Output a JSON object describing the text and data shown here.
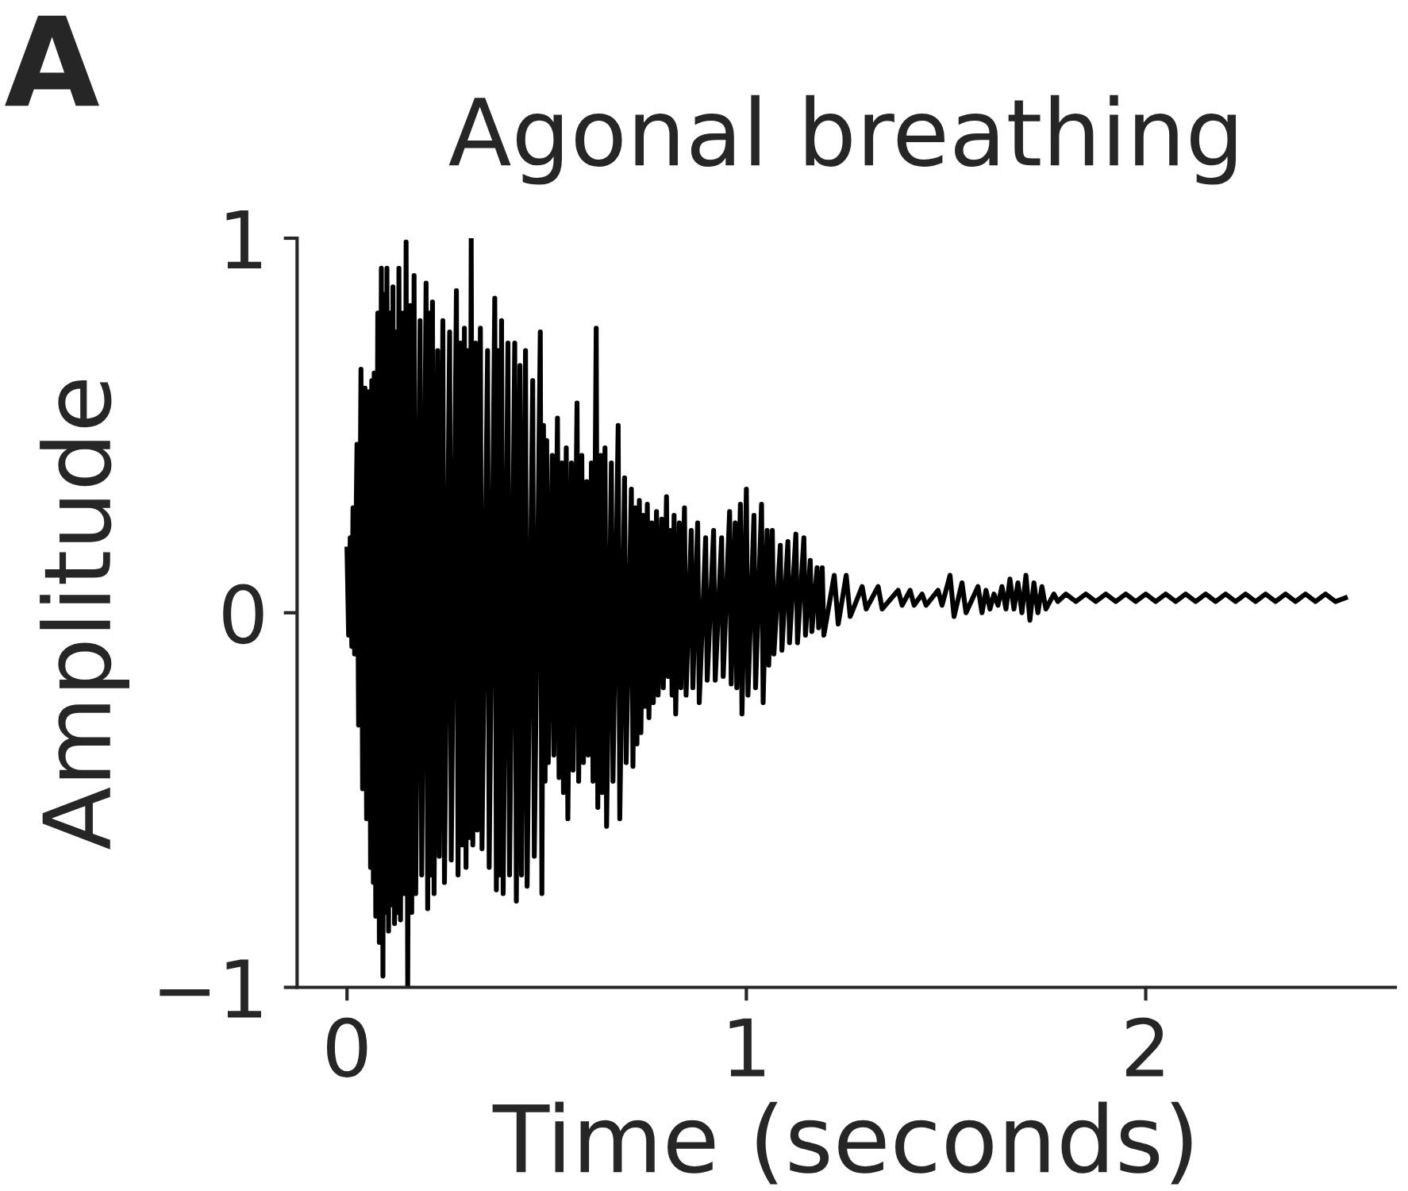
{
  "chart_data": {
    "type": "line",
    "title": "Agonal breathing",
    "xlabel": "Time (seconds)",
    "ylabel": "Amplitude",
    "annotations": [
      "A"
    ],
    "xlim": [
      -0.125,
      2.625
    ],
    "ylim": [
      -1,
      1
    ],
    "xticks": [
      0,
      1,
      2
    ],
    "yticks": [
      {
        "value": -1,
        "label": "−1"
      },
      0,
      1
    ],
    "series": [
      {
        "color": "#000000",
        "x": [
          0,
          0.004,
          0.008,
          0.012,
          0.015,
          0.019,
          0.025,
          0.029,
          0.035,
          0.039,
          0.045,
          0.049,
          0.055,
          0.059,
          0.062,
          0.066,
          0.068,
          0.072,
          0.077,
          0.081,
          0.086,
          0.09,
          0.093,
          0.097,
          0.1,
          0.104,
          0.108,
          0.112,
          0.115,
          0.119,
          0.122,
          0.126,
          0.13,
          0.134,
          0.14,
          0.144,
          0.148,
          0.152,
          0.158,
          0.162,
          0.168,
          0.172,
          0.183,
          0.187,
          0.198,
          0.202,
          0.206,
          0.21,
          0.214,
          0.218,
          0.227,
          0.231,
          0.24,
          0.244,
          0.257,
          0.261,
          0.274,
          0.278,
          0.284,
          0.288,
          0.294,
          0.298,
          0.303,
          0.307,
          0.311,
          0.315,
          0.322,
          0.326,
          0.334,
          0.338,
          0.352,
          0.356,
          0.37,
          0.374,
          0.378,
          0.382,
          0.387,
          0.391,
          0.403,
          0.407,
          0.42,
          0.424,
          0.433,
          0.437,
          0.447,
          0.451,
          0.465,
          0.469,
          0.484,
          0.488,
          0.492,
          0.496,
          0.5,
          0.504,
          0.514,
          0.518,
          0.527,
          0.531,
          0.538,
          0.542,
          0.549,
          0.553,
          0.562,
          0.566,
          0.576,
          0.58,
          0.588,
          0.592,
          0.6,
          0.604,
          0.612,
          0.616,
          0.624,
          0.628,
          0.635,
          0.639,
          0.646,
          0.65,
          0.662,
          0.666,
          0.679,
          0.683,
          0.695,
          0.699,
          0.712,
          0.716,
          0.722,
          0.726,
          0.732,
          0.736,
          0.742,
          0.746,
          0.752,
          0.756,
          0.763,
          0.767,
          0.775,
          0.779,
          0.788,
          0.792,
          0.8,
          0.804,
          0.81,
          0.814,
          0.819,
          0.823,
          0.832,
          0.836,
          0.845,
          0.849,
          0.862,
          0.866,
          0.878,
          0.882,
          0.898,
          0.902,
          0.918,
          0.922,
          0.938,
          0.942,
          0.958,
          0.962,
          0.972,
          0.976,
          0.985,
          0.989,
          1.0,
          1.004,
          1.019,
          1.023,
          1.038,
          1.042,
          1.052,
          1.056,
          1.065,
          1.069,
          1.085,
          1.089,
          1.104,
          1.108,
          1.124,
          1.128,
          1.144,
          1.148,
          1.16,
          1.164,
          1.177,
          1.181,
          1.19,
          1.194,
          1.22,
          1.23,
          1.25,
          1.26,
          1.29,
          1.3,
          1.33,
          1.34,
          1.38,
          1.39,
          1.41,
          1.42,
          1.44,
          1.45,
          1.48,
          1.49,
          1.51,
          1.52,
          1.54,
          1.55,
          1.58,
          1.59,
          1.6,
          1.61,
          1.62,
          1.63,
          1.64,
          1.65,
          1.66,
          1.67,
          1.68,
          1.69,
          1.7,
          1.71,
          1.72,
          1.73,
          1.74,
          1.75,
          1.77,
          1.78,
          1.8,
          1.825,
          1.85,
          1.875,
          1.9,
          1.925,
          1.95,
          1.975,
          2.0,
          2.025,
          2.05,
          2.075,
          2.1,
          2.125,
          2.15,
          2.175,
          2.2,
          2.225,
          2.25,
          2.275,
          2.3,
          2.325,
          2.35,
          2.375,
          2.4,
          2.425,
          2.45,
          2.475,
          2.5
        ],
        "values": [
          0.17,
          -0.06,
          0.2,
          -0.09,
          0.28,
          -0.11,
          0.45,
          -0.3,
          0.65,
          -0.47,
          0.6,
          -0.55,
          0.59,
          -0.68,
          0.62,
          -0.72,
          0.64,
          -0.81,
          0.8,
          -0.88,
          0.92,
          -0.97,
          0.85,
          -0.8,
          0.92,
          -0.85,
          0.8,
          -0.78,
          0.87,
          -0.83,
          0.75,
          -0.8,
          0.92,
          -0.82,
          0.8,
          -0.75,
          0.99,
          -1.0,
          0.82,
          -0.8,
          0.9,
          -0.75,
          0.78,
          -0.7,
          0.88,
          -0.79,
          0.8,
          -0.7,
          0.83,
          -0.75,
          0.7,
          -0.65,
          0.78,
          -0.72,
          0.75,
          -0.66,
          0.86,
          -0.7,
          0.72,
          -0.62,
          0.76,
          -0.68,
          0.7,
          -0.6,
          1.0,
          -0.62,
          0.72,
          -0.58,
          0.76,
          -0.63,
          0.7,
          -0.68,
          0.84,
          -0.74,
          0.7,
          -0.7,
          0.78,
          -0.75,
          0.72,
          -0.7,
          0.72,
          -0.77,
          0.66,
          -0.7,
          0.7,
          -0.73,
          0.62,
          -0.65,
          0.75,
          -0.75,
          0.5,
          -0.45,
          0.46,
          -0.4,
          0.42,
          -0.38,
          0.52,
          -0.44,
          0.4,
          -0.48,
          0.44,
          -0.55,
          0.4,
          -0.42,
          0.56,
          -0.45,
          0.42,
          -0.4,
          0.35,
          -0.38,
          0.4,
          -0.45,
          0.76,
          -0.52,
          0.42,
          -0.48,
          0.44,
          -0.57,
          0.4,
          -0.45,
          0.5,
          -0.55,
          0.36,
          -0.4,
          0.33,
          -0.41,
          0.28,
          -0.35,
          0.3,
          -0.32,
          0.26,
          -0.25,
          0.29,
          -0.28,
          0.24,
          -0.24,
          0.27,
          -0.22,
          0.25,
          -0.2,
          0.31,
          -0.17,
          0.22,
          -0.22,
          0.26,
          -0.27,
          0.24,
          -0.2,
          0.28,
          -0.22,
          0.22,
          -0.2,
          0.24,
          -0.24,
          0.2,
          -0.18,
          0.22,
          -0.18,
          0.2,
          -0.17,
          0.27,
          -0.19,
          0.24,
          -0.2,
          0.29,
          -0.27,
          0.33,
          -0.22,
          0.26,
          -0.2,
          0.29,
          -0.24,
          0.22,
          -0.14,
          0.22,
          -0.11,
          0.18,
          -0.1,
          0.19,
          -0.08,
          0.21,
          -0.08,
          0.2,
          -0.06,
          0.14,
          -0.05,
          0.12,
          -0.04,
          0.12,
          -0.06,
          0.1,
          -0.03,
          0.1,
          -0.01,
          0.07,
          0.01,
          0.07,
          0.01,
          0.06,
          0.02,
          0.06,
          0.02,
          0.05,
          0.02,
          0.06,
          0.02,
          0.1,
          -0.01,
          0.08,
          0.0,
          0.07,
          0.0,
          0.06,
          0.01,
          0.05,
          0.02,
          0.07,
          0.01,
          0.09,
          0.01,
          0.08,
          0.0,
          0.1,
          -0.02,
          0.08,
          0.0,
          0.07,
          0.01,
          0.05,
          0.03,
          0.05,
          0.03,
          0.05,
          0.03,
          0.05,
          0.03,
          0.05,
          0.03,
          0.05,
          0.03,
          0.05,
          0.03,
          0.05,
          0.03,
          0.05,
          0.03,
          0.05,
          0.03,
          0.05,
          0.03,
          0.05,
          0.03,
          0.05,
          0.03,
          0.05,
          0.03,
          0.05,
          0.03,
          0.04
        ]
      }
    ]
  }
}
